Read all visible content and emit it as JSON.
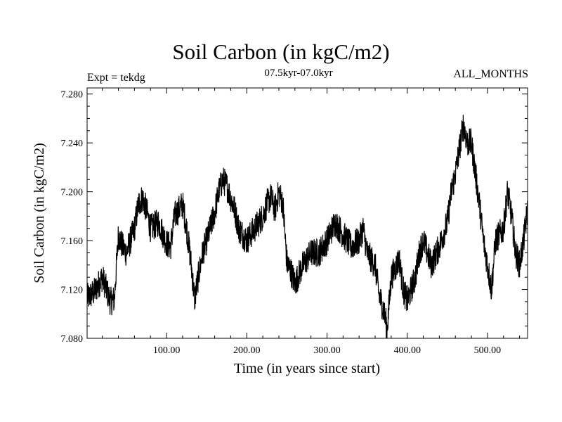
{
  "header": {
    "title": "Soil Carbon (in kgC/m2)",
    "subtitle": "07.5kyr-07.0kyr",
    "experiment": "Expt = tekdg",
    "months": "ALL_MONTHS"
  },
  "chart_data": {
    "type": "line",
    "title": "Soil Carbon (in kgC/m2)",
    "xlabel": "Time (in years since start)",
    "ylabel": "Soil Carbon (in kgC/m2)",
    "xlim": [
      1,
      550
    ],
    "ylim": [
      7.08,
      7.285
    ],
    "x_ticks": [
      100,
      200,
      300,
      400,
      500
    ],
    "x_tick_labels": [
      "100.00",
      "200.00",
      "300.00",
      "400.00",
      "500.00"
    ],
    "y_ticks": [
      7.08,
      7.12,
      7.16,
      7.2,
      7.24,
      7.28
    ],
    "y_tick_labels": [
      "7.080",
      "7.120",
      "7.160",
      "7.200",
      "7.240",
      "7.280"
    ],
    "grid": false,
    "series": [
      {
        "name": "Soil Carbon",
        "color": "#000000",
        "x": [
          1,
          10,
          20,
          30,
          35,
          40,
          45,
          50,
          55,
          60,
          65,
          70,
          75,
          80,
          90,
          100,
          105,
          110,
          120,
          125,
          130,
          135,
          140,
          145,
          150,
          160,
          165,
          170,
          175,
          180,
          185,
          190,
          200,
          210,
          220,
          225,
          230,
          235,
          240,
          245,
          250,
          255,
          260,
          270,
          280,
          290,
          300,
          310,
          320,
          330,
          340,
          345,
          350,
          360,
          365,
          370,
          375,
          380,
          390,
          395,
          400,
          410,
          415,
          420,
          430,
          440,
          450,
          455,
          460,
          465,
          470,
          475,
          480,
          485,
          490,
          495,
          500,
          505,
          510,
          520,
          525,
          530,
          535,
          540,
          545,
          550
        ],
        "y": [
          7.113,
          7.118,
          7.13,
          7.11,
          7.112,
          7.165,
          7.155,
          7.15,
          7.16,
          7.17,
          7.19,
          7.195,
          7.185,
          7.17,
          7.175,
          7.158,
          7.155,
          7.18,
          7.19,
          7.17,
          7.145,
          7.112,
          7.132,
          7.15,
          7.16,
          7.183,
          7.2,
          7.21,
          7.205,
          7.195,
          7.185,
          7.17,
          7.16,
          7.17,
          7.18,
          7.19,
          7.196,
          7.185,
          7.2,
          7.19,
          7.142,
          7.135,
          7.125,
          7.14,
          7.15,
          7.15,
          7.16,
          7.175,
          7.165,
          7.155,
          7.16,
          7.17,
          7.15,
          7.14,
          7.115,
          7.105,
          7.088,
          7.13,
          7.145,
          7.12,
          7.11,
          7.13,
          7.15,
          7.16,
          7.14,
          7.155,
          7.175,
          7.2,
          7.215,
          7.235,
          7.255,
          7.24,
          7.24,
          7.215,
          7.19,
          7.16,
          7.14,
          7.12,
          7.16,
          7.17,
          7.2,
          7.18,
          7.15,
          7.14,
          7.16,
          7.185
        ],
        "jitter_amplitude": 0.012
      }
    ]
  }
}
